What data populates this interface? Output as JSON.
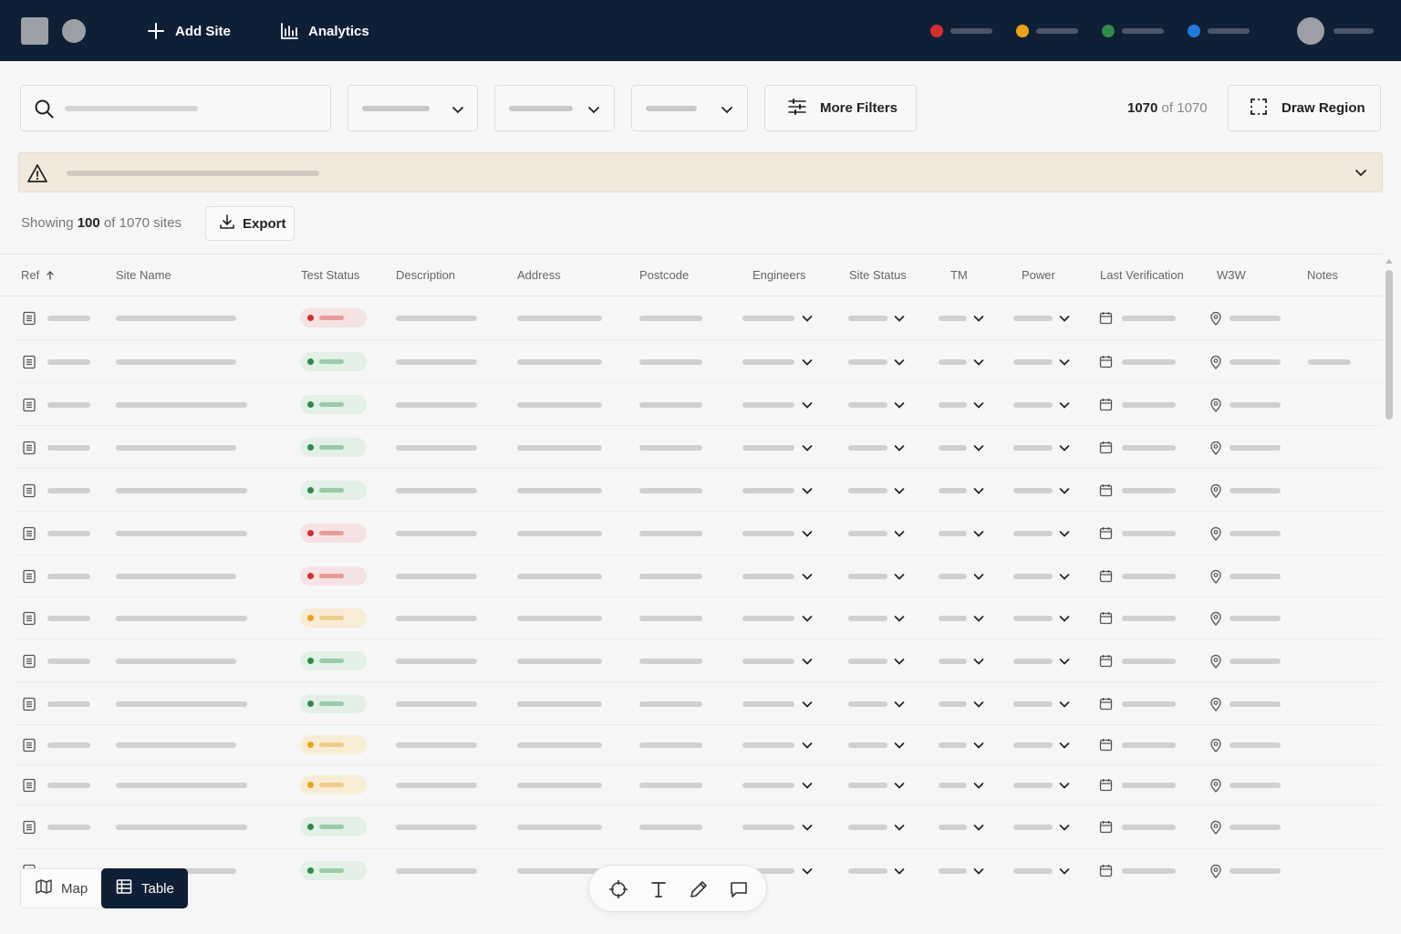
{
  "header": {
    "add_site_label": "Add Site",
    "analytics_label": "Analytics",
    "legend_colors": [
      "#d32f2f",
      "#eda21a",
      "#2e8b4a",
      "#1f7ae0"
    ]
  },
  "filters": {
    "more_filters_label": "More Filters",
    "count_shown": "1070",
    "count_of": "of",
    "count_total": "1070",
    "draw_region_label": "Draw Region"
  },
  "summary": {
    "prefix": "Showing",
    "shown": "100",
    "suffix": "of 1070 sites",
    "export_label": "Export"
  },
  "table": {
    "columns": [
      "Ref",
      "Site Name",
      "Test Status",
      "Description",
      "Address",
      "Postcode",
      "Engineers",
      "Site Status",
      "TM",
      "Power",
      "Last Verification",
      "W3W",
      "Notes"
    ],
    "sorted_column": "Ref",
    "sort_direction": "ascending",
    "rows": [
      {
        "status": "red",
        "has_notes": false
      },
      {
        "status": "green",
        "has_notes": true
      },
      {
        "status": "green",
        "has_notes": false
      },
      {
        "status": "green",
        "has_notes": false
      },
      {
        "status": "green",
        "has_notes": false
      },
      {
        "status": "red",
        "has_notes": false
      },
      {
        "status": "red",
        "has_notes": false
      },
      {
        "status": "yellow",
        "has_notes": false
      },
      {
        "status": "green",
        "has_notes": false
      },
      {
        "status": "green",
        "has_notes": false
      },
      {
        "status": "yellow",
        "has_notes": false
      },
      {
        "status": "yellow",
        "has_notes": false
      },
      {
        "status": "green",
        "has_notes": false
      },
      {
        "status": "green",
        "has_notes": false
      }
    ]
  },
  "view_toggle": {
    "map_label": "Map",
    "table_label": "Table",
    "active": "Table"
  },
  "tools": [
    "crosshair-icon",
    "text-icon",
    "pencil-icon",
    "comment-icon"
  ]
}
